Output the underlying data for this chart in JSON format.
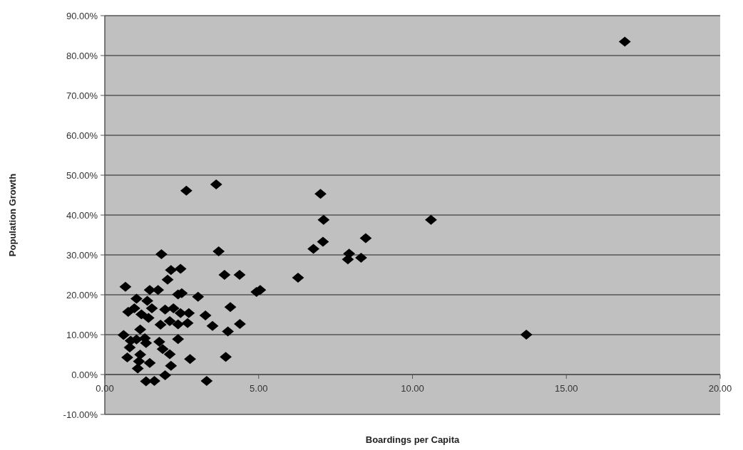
{
  "chart_data": {
    "type": "scatter",
    "xlabel": "Boardings per Capita",
    "ylabel": "Population Growth",
    "xlim": [
      0,
      20
    ],
    "ylim": [
      -10,
      90
    ],
    "xticks": [
      {
        "value": 0,
        "label": "0.00"
      },
      {
        "value": 5,
        "label": "5.00"
      },
      {
        "value": 10,
        "label": "10.00"
      },
      {
        "value": 15,
        "label": "15.00"
      },
      {
        "value": 20,
        "label": "20.00"
      }
    ],
    "yticks": [
      {
        "value": -10,
        "label": "-10.00%"
      },
      {
        "value": 0,
        "label": "0.00%"
      },
      {
        "value": 10,
        "label": "10.00%"
      },
      {
        "value": 20,
        "label": "20.00%"
      },
      {
        "value": 30,
        "label": "30.00%"
      },
      {
        "value": 40,
        "label": "40.00%"
      },
      {
        "value": 50,
        "label": "50.00%"
      },
      {
        "value": 60,
        "label": "60.00%"
      },
      {
        "value": 70,
        "label": "70.00%"
      },
      {
        "value": 80,
        "label": "80.00%"
      },
      {
        "value": 90,
        "label": "90.00%"
      }
    ],
    "grid": "y",
    "marker": "diamond",
    "series": [
      {
        "color": "#000000",
        "x": [
          16.9,
          13.7,
          10.6,
          2.65,
          3.62,
          7.01,
          7.11,
          8.48,
          7.09,
          6.78,
          7.94,
          7.9,
          8.33,
          1.84,
          3.7,
          2.15,
          2.46,
          2.04,
          3.89,
          4.38,
          6.28,
          0.67,
          1.46,
          1.73,
          2.38,
          2.5,
          3.03,
          4.93,
          5.05,
          1.03,
          1.38,
          4.08,
          0.76,
          0.96,
          1.19,
          1.42,
          1.53,
          1.96,
          2.23,
          2.46,
          2.73,
          3.27,
          1.81,
          2.11,
          2.38,
          2.69,
          3.5,
          4.39,
          4.0,
          1.15,
          0.61,
          0.84,
          1.03,
          1.3,
          1.34,
          1.77,
          2.38,
          0.81,
          1.88,
          2.11,
          1.15,
          0.73,
          2.77,
          3.93,
          1.11,
          1.46,
          1.07,
          2.15,
          1.96,
          1.34,
          1.61,
          3.31
        ],
        "values": [
          83.5,
          10.0,
          38.8,
          46.1,
          47.7,
          45.3,
          38.8,
          34.2,
          33.3,
          31.5,
          30.3,
          28.9,
          29.3,
          30.2,
          30.9,
          26.2,
          26.5,
          23.8,
          25.0,
          25.0,
          24.3,
          22.0,
          21.2,
          21.2,
          20.1,
          20.4,
          19.5,
          20.7,
          21.2,
          19.0,
          18.5,
          16.9,
          15.7,
          16.6,
          15.1,
          14.2,
          16.6,
          16.3,
          16.6,
          15.4,
          15.4,
          14.8,
          12.5,
          13.4,
          12.6,
          12.9,
          12.2,
          12.7,
          10.8,
          11.3,
          9.9,
          8.5,
          8.8,
          9.1,
          7.9,
          8.2,
          8.9,
          6.8,
          6.4,
          5.1,
          5.0,
          4.3,
          3.9,
          4.4,
          3.3,
          2.9,
          1.5,
          2.2,
          -0.2,
          -1.7,
          -1.6,
          -1.6
        ]
      }
    ]
  }
}
